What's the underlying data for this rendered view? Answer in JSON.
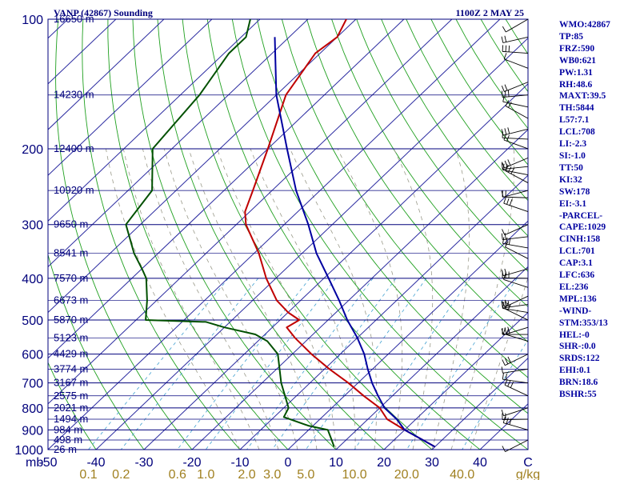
{
  "chart_data": {
    "type": "skew-t log-p sounding",
    "title": "VANP (42867) Sounding",
    "time": "1100Z  2 MAY 25",
    "pressure_axis": {
      "unit_label": "mb",
      "ticks": [
        100,
        200,
        300,
        400,
        500,
        600,
        700,
        800,
        900,
        1000
      ],
      "range": [
        100,
        1000
      ]
    },
    "temperature_axis": {
      "range": [
        -50,
        50
      ],
      "ticks": [
        -50,
        -40,
        -30,
        -20,
        -10,
        0,
        10,
        20,
        30,
        40
      ],
      "tick_labels": [
        "-50",
        "-40",
        "-30",
        "-20",
        "-10",
        "0",
        "10",
        "20",
        "30",
        "40"
      ],
      "end_label": "C"
    },
    "mixing_ratio_axis": {
      "values": [
        0.1,
        0.2,
        0.6,
        1.0,
        2.0,
        3.0,
        5.0,
        10.0,
        20.0,
        40.0
      ],
      "labels": [
        "0.1",
        "0.2",
        "0.6",
        "1.0",
        "2.0",
        "3.0",
        "5.0",
        "10.0",
        "20.0",
        "40.0"
      ],
      "unit": "g/kg"
    },
    "heights": [
      {
        "p": 100,
        "label": "16650 m"
      },
      {
        "p": 150,
        "label": "14230 m"
      },
      {
        "p": 200,
        "label": "12400 m"
      },
      {
        "p": 250,
        "label": "10920 m"
      },
      {
        "p": 300,
        "label": "9650 m"
      },
      {
        "p": 350,
        "label": "8541 m"
      },
      {
        "p": 400,
        "label": "7570 m"
      },
      {
        "p": 450,
        "label": "6673 m"
      },
      {
        "p": 500,
        "label": "5870 m"
      },
      {
        "p": 550,
        "label": "5123 m"
      },
      {
        "p": 600,
        "label": "4429 m"
      },
      {
        "p": 650,
        "label": "3774 m"
      },
      {
        "p": 700,
        "label": "3167 m"
      },
      {
        "p": 750,
        "label": "2575 m"
      },
      {
        "p": 800,
        "label": "2021 m"
      },
      {
        "p": 850,
        "label": "1494 m"
      },
      {
        "p": 900,
        "label": "984 m"
      },
      {
        "p": 950,
        "label": "498 m"
      },
      {
        "p": 1000,
        "label": "26 m"
      }
    ],
    "series": [
      {
        "name": "temperature",
        "color": "#c00000",
        "points": [
          [
            100,
            -82
          ],
          [
            110,
            -80
          ],
          [
            120,
            -81
          ],
          [
            150,
            -78
          ],
          [
            200,
            -70
          ],
          [
            250,
            -64
          ],
          [
            280,
            -61
          ],
          [
            300,
            -58
          ],
          [
            350,
            -49
          ],
          [
            400,
            -42
          ],
          [
            450,
            -35
          ],
          [
            480,
            -30
          ],
          [
            500,
            -26
          ],
          [
            520,
            -27
          ],
          [
            550,
            -23
          ],
          [
            600,
            -16
          ],
          [
            650,
            -9
          ],
          [
            700,
            -2
          ],
          [
            750,
            4
          ],
          [
            800,
            10
          ],
          [
            850,
            14
          ],
          [
            900,
            20
          ],
          [
            950,
            26
          ],
          [
            985,
            30
          ]
        ]
      },
      {
        "name": "dewpoint",
        "color": "#005000",
        "points": [
          [
            100,
            -102
          ],
          [
            110,
            -99
          ],
          [
            120,
            -99
          ],
          [
            150,
            -96
          ],
          [
            200,
            -94
          ],
          [
            250,
            -85
          ],
          [
            300,
            -83
          ],
          [
            350,
            -75
          ],
          [
            380,
            -70
          ],
          [
            400,
            -67
          ],
          [
            450,
            -62
          ],
          [
            500,
            -58
          ],
          [
            505,
            -45
          ],
          [
            520,
            -40
          ],
          [
            540,
            -32
          ],
          [
            560,
            -28
          ],
          [
            600,
            -23
          ],
          [
            700,
            -16
          ],
          [
            800,
            -9
          ],
          [
            840,
            -8
          ],
          [
            880,
            -1
          ],
          [
            900,
            4
          ],
          [
            950,
            7
          ],
          [
            985,
            9
          ]
        ]
      },
      {
        "name": "parcel",
        "color": "#0000a0",
        "points": [
          [
            985,
            30
          ],
          [
            950,
            26
          ],
          [
            900,
            20
          ],
          [
            850,
            16
          ],
          [
            800,
            11
          ],
          [
            750,
            7
          ],
          [
            701,
            3
          ],
          [
            650,
            -1
          ],
          [
            600,
            -5
          ],
          [
            550,
            -10
          ],
          [
            500,
            -16
          ],
          [
            450,
            -22
          ],
          [
            400,
            -29
          ],
          [
            350,
            -37
          ],
          [
            300,
            -45
          ],
          [
            250,
            -55
          ],
          [
            200,
            -66
          ],
          [
            150,
            -80
          ],
          [
            110,
            -93
          ]
        ]
      }
    ]
  },
  "indices": [
    "WMO:42867",
    "TP:85",
    "FRZ:590",
    "WB0:621",
    "PW:1.31",
    "RH:48.6",
    "MAXT:39.5",
    "TH:5844",
    "L57:7.1",
    "LCL:708",
    "LI:-2.3",
    "SI:-1.0",
    "TT:50",
    "KI:32",
    "SW:178",
    "EI:-3.1",
    "-PARCEL-",
    "CAPE:1029",
    "CINH:158",
    "LCL:701",
    "CAP:3.1",
    "LFC:636",
    "EL:236",
    "MPL:136",
    "-WIND-",
    "STM:353/13",
    "HEL:-0",
    "SHR-:0.0",
    "SRDS:122",
    "EHI:0.1",
    "BRN:18.6",
    "BSHR:55"
  ],
  "colors": {
    "navy": "#00007c",
    "isotherm": "#2a2aa0",
    "dry_adiabat": "#20a020",
    "moist_adiabat": "#9a9a8a",
    "mixing_ratio": "#40a0d0",
    "mixing_label": "#a08020"
  }
}
